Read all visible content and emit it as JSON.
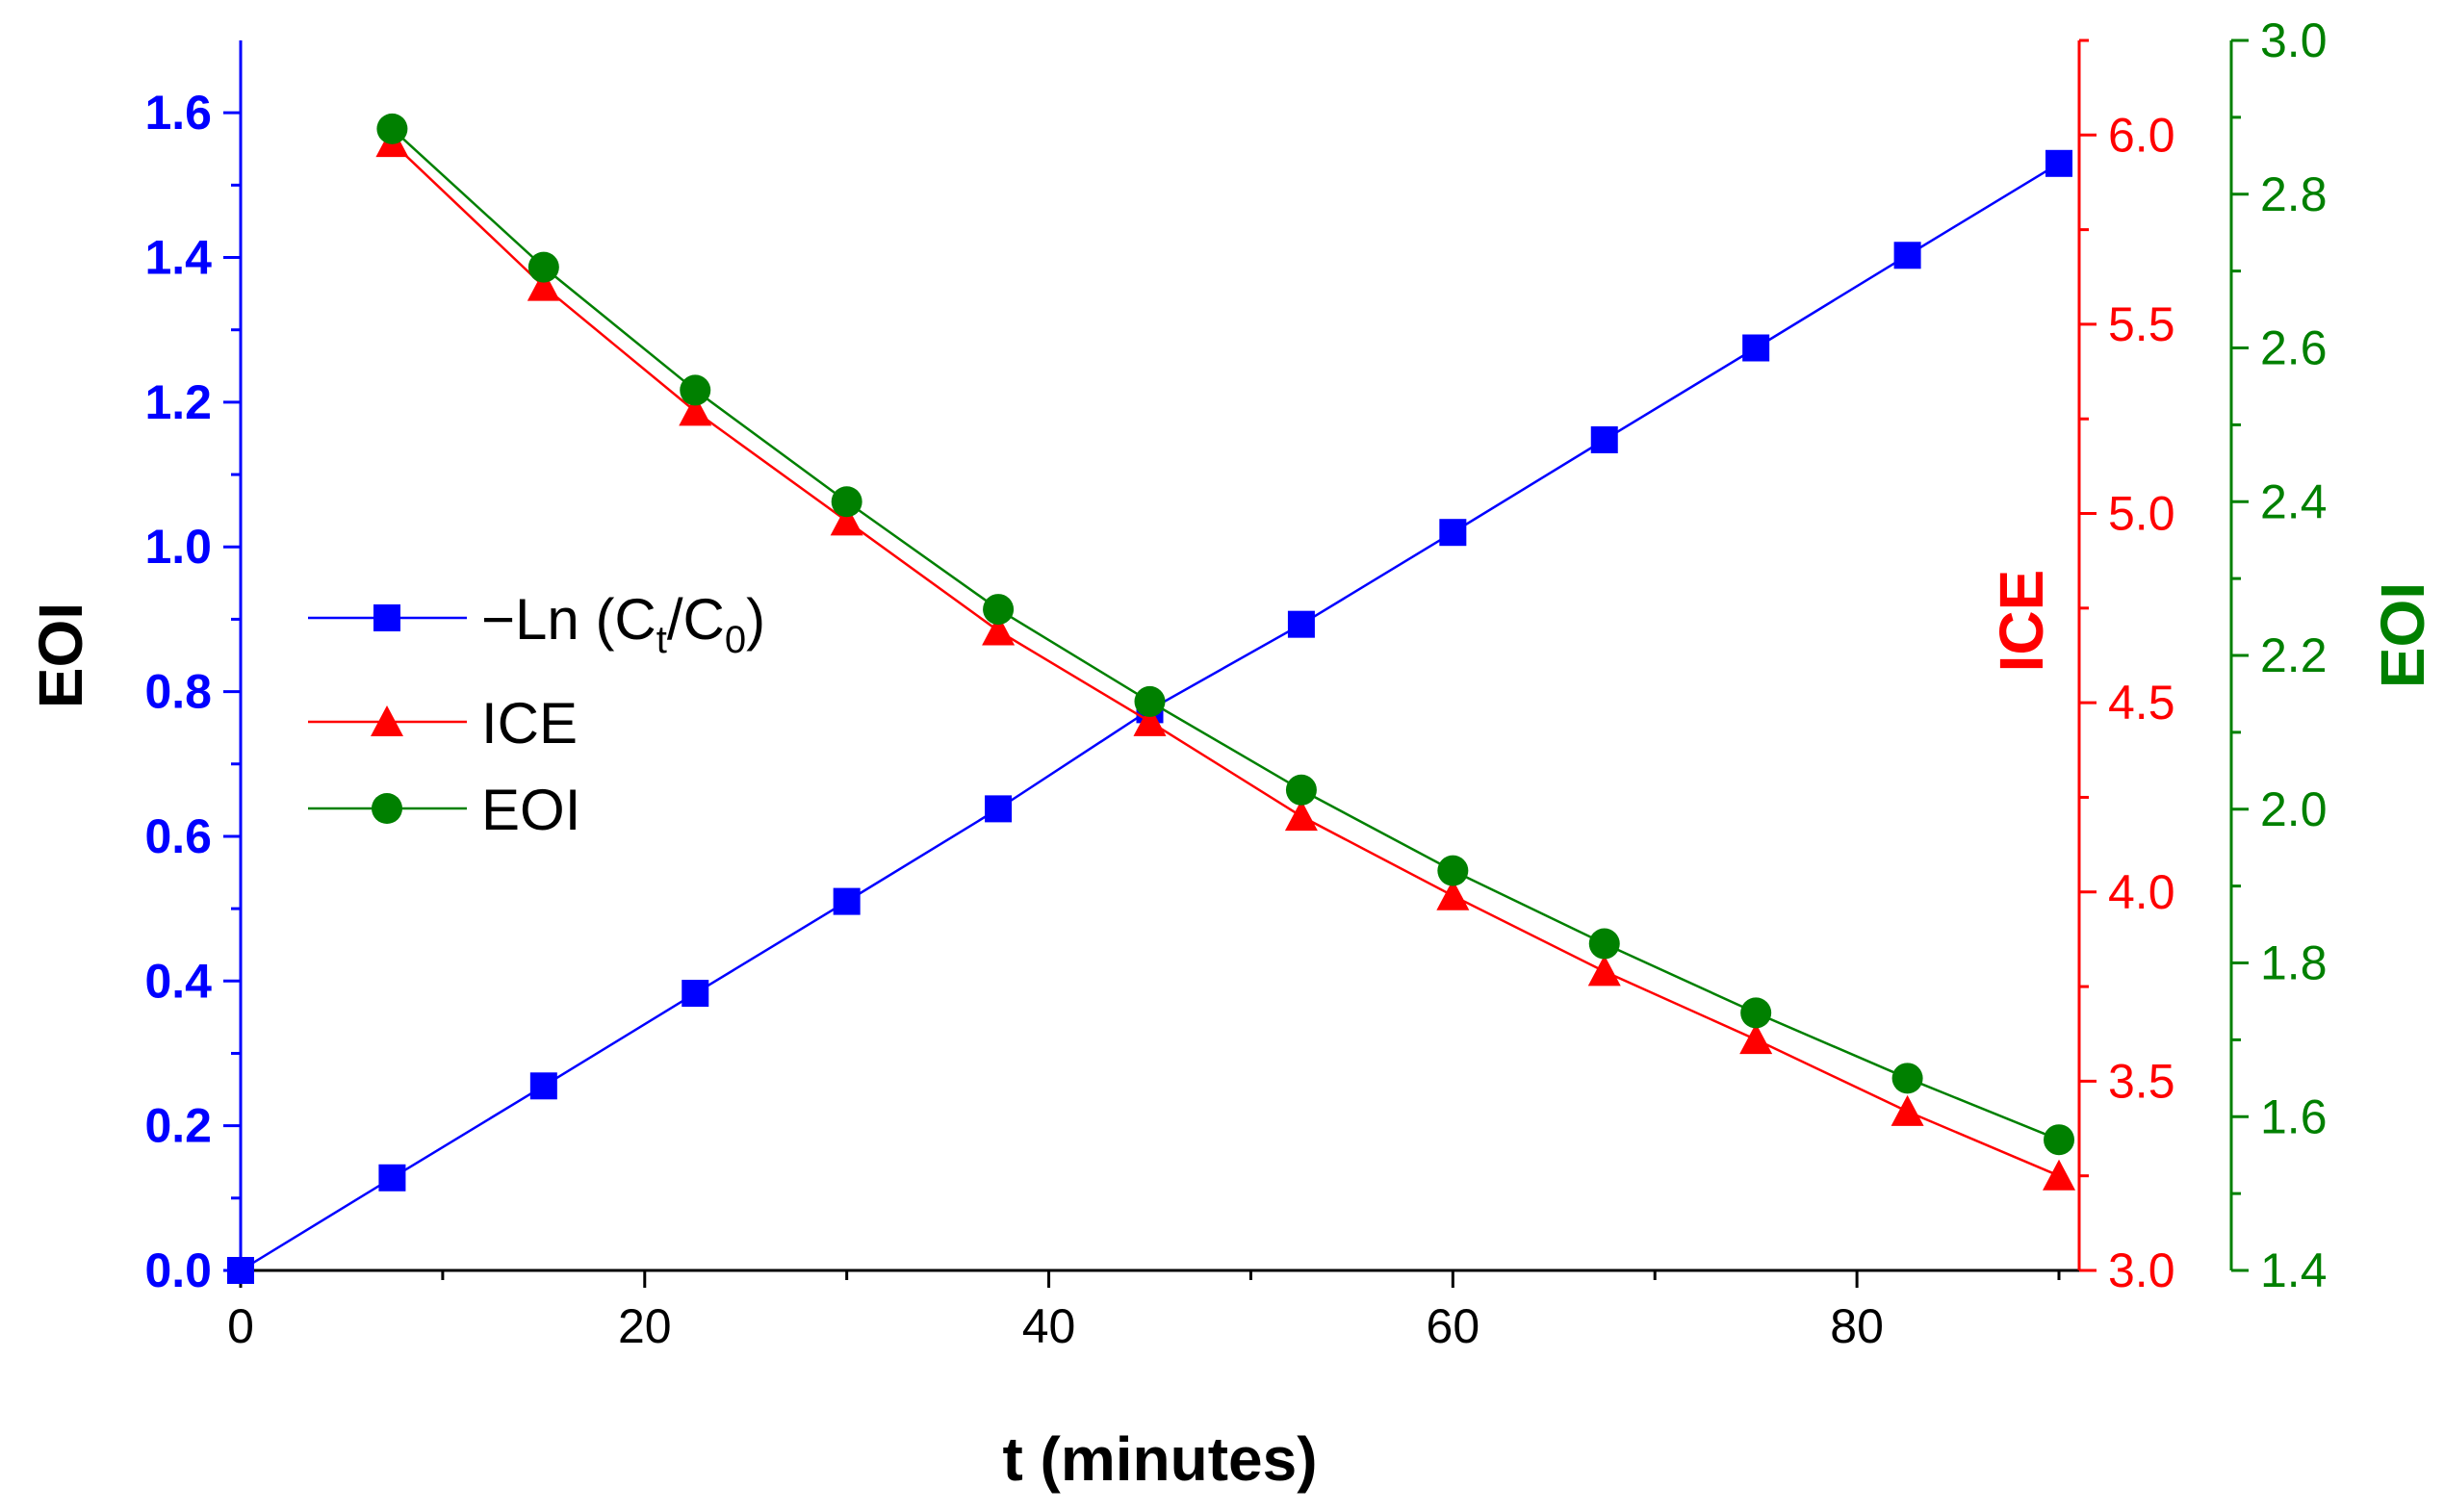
{
  "chart_data": {
    "type": "line",
    "xlabel": "t (minutes)",
    "xlim": [
      0,
      91
    ],
    "xticks": [
      0,
      20,
      40,
      60,
      80
    ],
    "axes": {
      "left": {
        "label": "EOI",
        "ylim": [
          0,
          1.7
        ],
        "ticks": [
          "0.0",
          "0.2",
          "0.4",
          "0.6",
          "0.8",
          "1.0",
          "1.2",
          "1.4",
          "1.6"
        ],
        "color": "#0000ff"
      },
      "right1": {
        "label": "ICE",
        "ylim": [
          3.0,
          6.25
        ],
        "ticks": [
          "3.0",
          "3.5",
          "4.0",
          "4.5",
          "5.0",
          "5.5",
          "6.0"
        ],
        "color": "#ff0000"
      },
      "right2": {
        "label": "EOI",
        "ylim": [
          1.4,
          3.0
        ],
        "ticks": [
          "1.4",
          "1.6",
          "1.8",
          "2.0",
          "2.2",
          "2.4",
          "2.6",
          "2.8",
          "3.0"
        ],
        "color": "#008000"
      }
    },
    "series": [
      {
        "name": "−Ln (Ct/C0)",
        "legend_main": "−Ln (C",
        "legend_sub1": "t",
        "legend_mid": "/C",
        "legend_sub2": "0",
        "legend_end": ")",
        "axis": "left",
        "marker": "square",
        "color": "#0000ff",
        "x": [
          0,
          7.5,
          15,
          22.5,
          30,
          37.5,
          45,
          52.5,
          60,
          67.5,
          75,
          82.5,
          90
        ],
        "y": [
          0.0,
          0.128,
          0.255,
          0.383,
          0.51,
          0.638,
          0.775,
          0.893,
          1.02,
          1.148,
          1.275,
          1.403,
          1.53
        ]
      },
      {
        "name": "ICE",
        "axis": "right1",
        "marker": "triangle",
        "color": "#ff0000",
        "x": [
          7.5,
          15,
          22.5,
          30,
          37.5,
          45,
          52.5,
          60,
          67.5,
          75,
          82.5,
          90
        ],
        "y": [
          5.98,
          5.6,
          5.27,
          4.98,
          4.69,
          4.45,
          4.2,
          3.99,
          3.79,
          3.61,
          3.42,
          3.25
        ]
      },
      {
        "name": "EOI",
        "axis": "right2",
        "marker": "circle",
        "color": "#008000",
        "x": [
          7.5,
          15,
          22.5,
          30,
          37.5,
          45,
          52.5,
          60,
          67.5,
          75,
          82.5,
          90
        ],
        "y": [
          2.885,
          2.705,
          2.545,
          2.4,
          2.26,
          2.14,
          2.025,
          1.92,
          1.825,
          1.735,
          1.65,
          1.57
        ]
      }
    ],
    "legend_position": "center-left"
  }
}
